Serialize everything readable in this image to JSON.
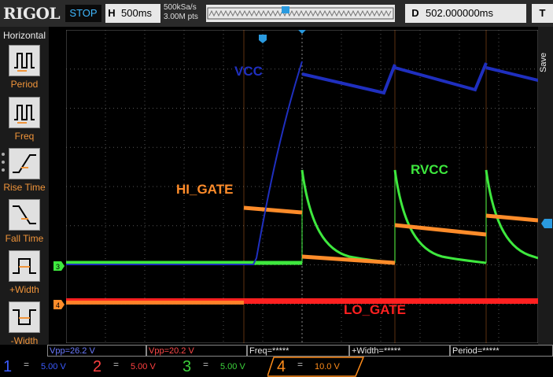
{
  "header": {
    "logo": "RIGOL",
    "run_state": "STOP",
    "h_label": "H",
    "timebase": "500ms",
    "sample_rate": "500kSa/s",
    "mem_depth": "3.00M pts",
    "d_label": "D",
    "delay": "502.000000ms",
    "t_label": "T"
  },
  "sidebar": {
    "title": "Horizontal",
    "items": [
      {
        "label": "Period",
        "icon": "period-icon"
      },
      {
        "label": "Freq",
        "icon": "freq-icon"
      },
      {
        "label": "Rise Time",
        "icon": "rise-time-icon"
      },
      {
        "label": "Fall Time",
        "icon": "fall-time-icon"
      },
      {
        "label": "+Width",
        "icon": "pos-width-icon"
      },
      {
        "label": "-Width",
        "icon": "neg-width-icon"
      }
    ]
  },
  "right": {
    "save_label": "Save"
  },
  "annotations": {
    "vcc": "VCC",
    "hi_gate": "HI_GATE",
    "rvcc": "RVCC",
    "lo_gate": "LO_GATE"
  },
  "measurements": [
    {
      "text": "Vpp=26.2 V",
      "color": "#6b7bff"
    },
    {
      "text": "Vpp=20.2 V",
      "color": "#ff4a4a"
    },
    {
      "text": "Freq=*****",
      "color": "#e8e8e8"
    },
    {
      "text": "+Width=*****",
      "color": "#e8e8e8"
    },
    {
      "text": "Period=*****",
      "color": "#e8e8e8"
    }
  ],
  "channels": [
    {
      "num": "1",
      "scale": "5.00 V",
      "color": "#3b5bff"
    },
    {
      "num": "2",
      "scale": "5.00 V",
      "color": "#ff4040"
    },
    {
      "num": "3",
      "scale": "5.00 V",
      "color": "#3cd23c"
    },
    {
      "num": "4",
      "scale": "10.0 V",
      "color": "#ff8c1a"
    }
  ],
  "trace_colors": {
    "ch1": "#1f2fbf",
    "ch2": "#ff2020",
    "ch3": "#3ee83e",
    "ch4": "#ff8c2a"
  },
  "trace_markers": {
    "ch3": "3",
    "ch4": "4"
  }
}
